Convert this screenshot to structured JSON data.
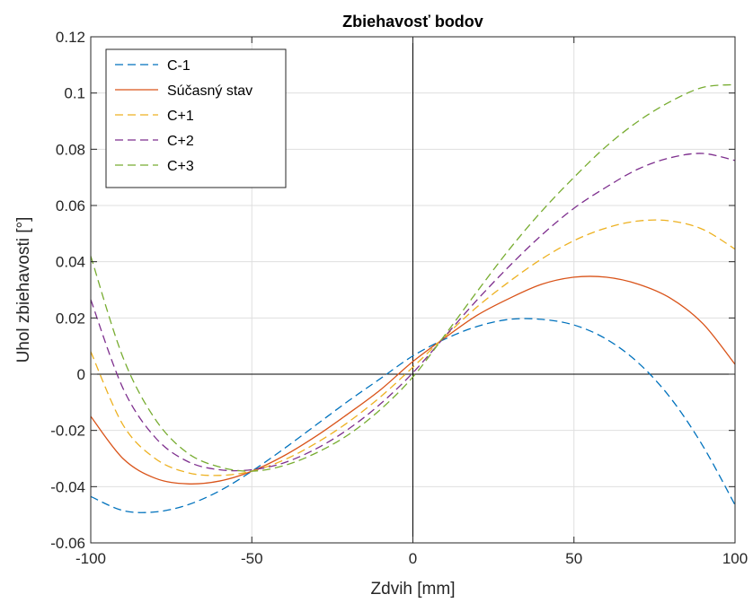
{
  "chart_data": {
    "type": "line",
    "title": "Zbiehavosť bodov",
    "xlabel": "Zdvih [mm]",
    "ylabel": "Uhol zbiehavosti [°]",
    "xlim": [
      -100,
      100
    ],
    "ylim": [
      -0.06,
      0.12
    ],
    "xticks": [
      -100,
      -50,
      0,
      50,
      100
    ],
    "xtick_labels": [
      "-100",
      "-50",
      "0",
      "50",
      "100"
    ],
    "yticks": [
      -0.06,
      -0.04,
      -0.02,
      0,
      0.02,
      0.04,
      0.06,
      0.08,
      0.1,
      0.12
    ],
    "ytick_labels": [
      "-0.06",
      "-0.04",
      "-0.02",
      "0",
      "0.02",
      "0.04",
      "0.06",
      "0.08",
      "0.1",
      "0.12"
    ],
    "grid": true,
    "legend_position": "top-left",
    "x": [
      -100,
      -90,
      -80,
      -70,
      -60,
      -50,
      -40,
      -30,
      -20,
      -10,
      0,
      10,
      20,
      30,
      40,
      50,
      60,
      70,
      80,
      90,
      100
    ],
    "series": [
      {
        "name": "C-1",
        "color": "#0072BD",
        "dash": "dashed",
        "values": [
          -0.0435,
          -0.0485,
          -0.049,
          -0.0465,
          -0.0415,
          -0.0345,
          -0.0265,
          -0.018,
          -0.0095,
          -0.0015,
          0.0065,
          0.0125,
          0.017,
          0.0195,
          0.0195,
          0.0175,
          0.0125,
          0.004,
          -0.0085,
          -0.0255,
          -0.0465
        ]
      },
      {
        "name": "Súčasný stav",
        "color": "#D95319",
        "dash": "solid",
        "values": [
          -0.015,
          -0.03,
          -0.037,
          -0.039,
          -0.038,
          -0.0345,
          -0.029,
          -0.022,
          -0.014,
          -0.0055,
          0.0045,
          0.013,
          0.021,
          0.027,
          0.032,
          0.0345,
          0.0345,
          0.032,
          0.027,
          0.018,
          0.0035
        ]
      },
      {
        "name": "C+1",
        "color": "#EDB120",
        "dash": "dashed",
        "values": [
          0.008,
          -0.018,
          -0.03,
          -0.035,
          -0.036,
          -0.0345,
          -0.0305,
          -0.0245,
          -0.017,
          -0.008,
          0.0025,
          0.0135,
          0.024,
          0.033,
          0.041,
          0.0475,
          0.052,
          0.0545,
          0.0545,
          0.0515,
          0.0445
        ]
      },
      {
        "name": "C+2",
        "color": "#7E2F8E",
        "dash": "dashed",
        "values": [
          0.0265,
          -0.005,
          -0.0225,
          -0.031,
          -0.034,
          -0.034,
          -0.0315,
          -0.0265,
          -0.0195,
          -0.0105,
          0.0005,
          0.0135,
          0.0265,
          0.0385,
          0.0495,
          0.059,
          0.0665,
          0.073,
          0.077,
          0.0785,
          0.076
        ]
      },
      {
        "name": "C+3",
        "color": "#77AC30",
        "dash": "dashed",
        "values": [
          0.042,
          0.006,
          -0.016,
          -0.028,
          -0.033,
          -0.0345,
          -0.0325,
          -0.028,
          -0.0215,
          -0.0125,
          -0.001,
          0.014,
          0.0295,
          0.0445,
          0.058,
          0.07,
          0.081,
          0.09,
          0.097,
          0.102,
          0.103
        ]
      }
    ]
  }
}
